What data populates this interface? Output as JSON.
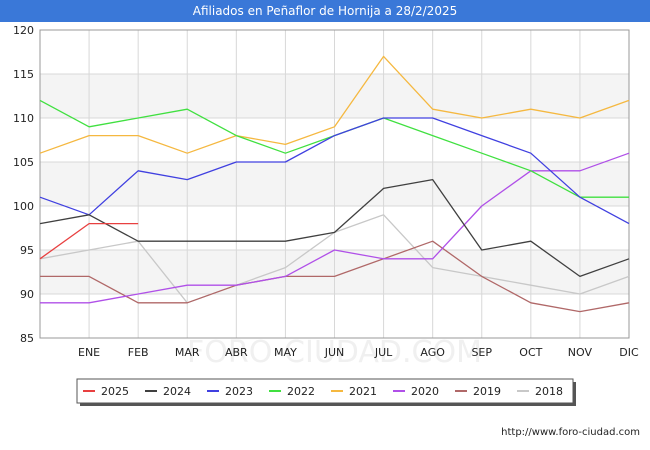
{
  "title": "Afiliados en Peñaflor de Hornija a 28/2/2025",
  "footer_url": "http://www.foro-ciudad.com",
  "watermark": "FORO-CIUDAD.COM",
  "chart_data": {
    "type": "line",
    "categories": [
      "ENE",
      "FEB",
      "MAR",
      "ABR",
      "MAY",
      "JUN",
      "JUL",
      "AGO",
      "SEP",
      "OCT",
      "NOV",
      "DIC"
    ],
    "ylim": [
      85,
      120
    ],
    "yticks": [
      85,
      90,
      95,
      100,
      105,
      110,
      115,
      120
    ],
    "grid": true,
    "legend_position": "bottom",
    "series": [
      {
        "name": "2025",
        "color": "#e84040",
        "x": [
          0,
          1,
          2
        ],
        "values": [
          94,
          98,
          98
        ]
      },
      {
        "name": "2024",
        "color": "#404040",
        "x": [
          0,
          1,
          2,
          3,
          4,
          5,
          6,
          7,
          8,
          9,
          10,
          11,
          12
        ],
        "values": [
          98,
          99,
          96,
          96,
          96,
          96,
          97,
          102,
          103,
          95,
          96,
          92,
          94
        ]
      },
      {
        "name": "2023",
        "color": "#4040e0",
        "x": [
          0,
          1,
          2,
          3,
          4,
          5,
          6,
          7,
          8,
          9,
          10,
          11,
          12
        ],
        "values": [
          101,
          99,
          104,
          103,
          105,
          105,
          108,
          110,
          110,
          108,
          106,
          101,
          98
        ]
      },
      {
        "name": "2022",
        "color": "#40e040",
        "x": [
          0,
          1,
          2,
          3,
          4,
          5,
          6,
          7,
          8,
          9,
          10,
          11,
          12
        ],
        "values": [
          112,
          109,
          110,
          111,
          108,
          106,
          108,
          110,
          108,
          106,
          104,
          101,
          101
        ]
      },
      {
        "name": "2021",
        "color": "#f5b840",
        "x": [
          0,
          1,
          2,
          3,
          4,
          5,
          6,
          7,
          8,
          9,
          10,
          11,
          12
        ],
        "values": [
          106,
          108,
          108,
          106,
          108,
          107,
          109,
          117,
          111,
          110,
          111,
          110,
          112
        ]
      },
      {
        "name": "2020",
        "color": "#b050e8",
        "x": [
          0,
          1,
          2,
          3,
          4,
          5,
          6,
          7,
          8,
          9,
          10,
          11,
          12
        ],
        "values": [
          89,
          89,
          90,
          91,
          91,
          92,
          95,
          94,
          94,
          100,
          104,
          104,
          106
        ]
      },
      {
        "name": "2019",
        "color": "#b06868",
        "x": [
          0,
          1,
          2,
          3,
          4,
          5,
          6,
          7,
          8,
          9,
          10,
          11,
          12
        ],
        "values": [
          92,
          92,
          89,
          89,
          91,
          92,
          92,
          94,
          96,
          92,
          89,
          88,
          89
        ]
      },
      {
        "name": "2018",
        "color": "#c8c8c8",
        "x": [
          0,
          1,
          2,
          3,
          4,
          5,
          6,
          7,
          8,
          9,
          10,
          11,
          12
        ],
        "values": [
          94,
          95,
          96,
          89,
          91,
          93,
          97,
          99,
          93,
          92,
          91,
          90,
          92
        ]
      }
    ]
  }
}
